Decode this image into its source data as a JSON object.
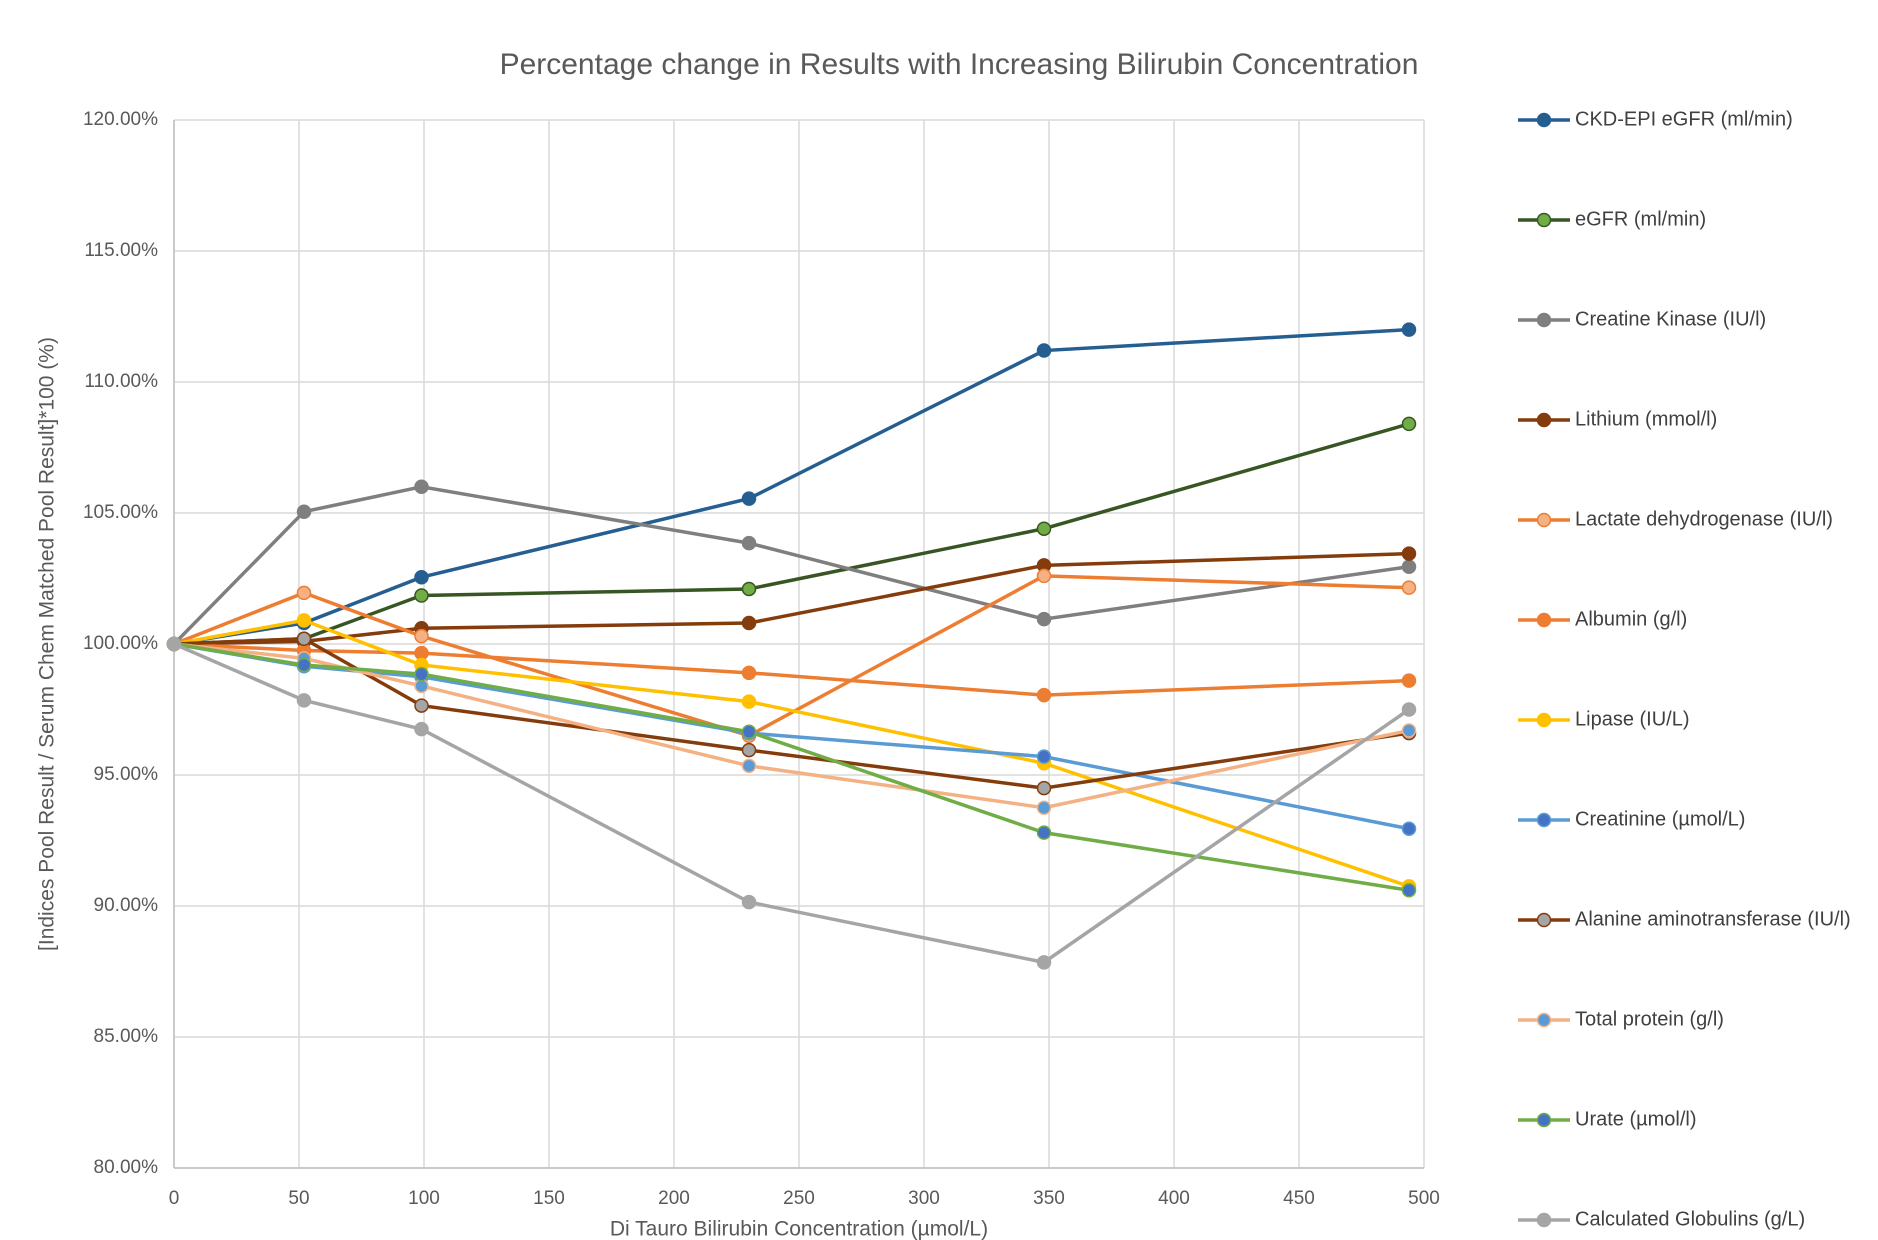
{
  "chart_data": {
    "type": "line",
    "title": "Percentage change in Results with Increasing Bilirubin Concentration",
    "x_label": "Di Tauro Bilirubin Concentration (µmol/L)",
    "y_label": "[Indices Pool Result / Serum Chem Matched Pool Result]*100 (%)",
    "x": [
      0,
      52,
      99,
      230,
      348,
      494
    ],
    "xlim": [
      0,
      500
    ],
    "xticks": [
      0,
      50,
      100,
      150,
      200,
      250,
      300,
      350,
      400,
      450,
      500
    ],
    "ylim": [
      80,
      120
    ],
    "yticks": [
      {
        "value": 80,
        "label": "80.00%"
      },
      {
        "value": 85,
        "label": "85.00%"
      },
      {
        "value": 90,
        "label": "90.00%"
      },
      {
        "value": 95,
        "label": "95.00%"
      },
      {
        "value": 100,
        "label": "100.00%"
      },
      {
        "value": 105,
        "label": "105.00%"
      },
      {
        "value": 110,
        "label": "110.00%"
      },
      {
        "value": 115,
        "label": "115.00%"
      },
      {
        "value": 120,
        "label": "120.00%"
      }
    ],
    "grid": true,
    "legend": "right",
    "series": [
      {
        "name": "CKD-EPI eGFR (ml/min)",
        "color": "#255e91",
        "marker_color": "#255e91",
        "values": [
          100,
          100.8,
          102.55,
          105.55,
          111.2,
          112.0
        ]
      },
      {
        "name": "eGFR (ml/min)",
        "color": "#375623",
        "marker_color": "#70ad47",
        "values": [
          100,
          100.2,
          101.85,
          102.1,
          104.4,
          108.4
        ]
      },
      {
        "name": "Creatine Kinase (IU/l)",
        "color": "#7f7f7f",
        "marker_color": "#7f7f7f",
        "values": [
          100,
          105.05,
          106.0,
          103.85,
          100.95,
          102.95
        ]
      },
      {
        "name": "Lithium (mmol/l)",
        "color": "#843c0c",
        "marker_color": "#843c0c",
        "values": [
          100,
          100.1,
          100.6,
          100.8,
          103.0,
          103.45
        ]
      },
      {
        "name": "Lactate dehydrogenase (IU/l)",
        "color": "#ed7d31",
        "marker_color": "#f4b183",
        "values": [
          100,
          101.95,
          100.3,
          96.5,
          102.6,
          102.15
        ]
      },
      {
        "name": "Albumin (g/l)",
        "color": "#ed7d31",
        "marker_color": "#ed7d31",
        "values": [
          100,
          99.75,
          99.65,
          98.9,
          98.05,
          98.6
        ]
      },
      {
        "name": "Lipase (IU/L)",
        "color": "#ffc000",
        "marker_color": "#ffc000",
        "values": [
          100,
          100.9,
          99.2,
          97.8,
          95.45,
          90.75
        ]
      },
      {
        "name": "Creatinine (µmol/L)",
        "color": "#5b9bd5",
        "marker_color": "#4472c4",
        "values": [
          100,
          99.15,
          98.75,
          96.6,
          95.7,
          92.95
        ]
      },
      {
        "name": "Alanine aminotransferase (IU/l)",
        "color": "#843c0c",
        "marker_color": "#a5a5a5",
        "values": [
          100,
          100.2,
          97.65,
          95.95,
          94.5,
          96.6
        ]
      },
      {
        "name": "Total protein (g/l)",
        "color": "#f4b183",
        "marker_color": "#5b9bd5",
        "values": [
          100,
          99.45,
          98.4,
          95.35,
          93.75,
          96.7
        ]
      },
      {
        "name": "Urate (µmol/l)",
        "color": "#70ad47",
        "marker_color": "#4472c4",
        "values": [
          100,
          99.2,
          98.85,
          96.65,
          92.8,
          90.6
        ]
      },
      {
        "name": "Calculated Globulins (g/L)",
        "color": "#a5a5a5",
        "marker_color": "#a5a5a5",
        "values": [
          100,
          97.85,
          96.75,
          90.15,
          87.85,
          97.5
        ]
      }
    ]
  }
}
